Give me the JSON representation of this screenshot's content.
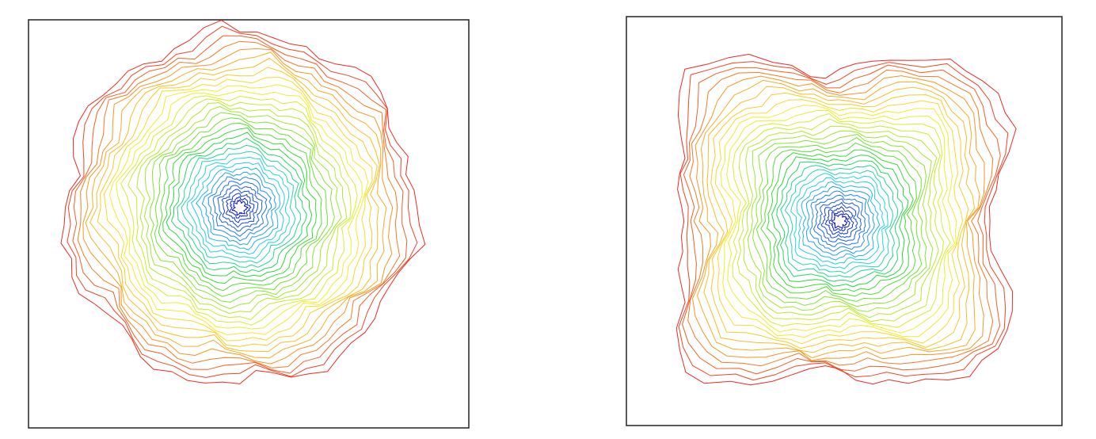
{
  "chart_data": [
    {
      "type": "contour",
      "panel": "left",
      "shape": "round",
      "levels": 34,
      "colormap": [
        "#0a10c8",
        "#1e6cf2",
        "#28d2f0",
        "#2ad63a",
        "#9be830",
        "#f7f02e",
        "#f9a826",
        "#ee2a22"
      ],
      "peak": [
        0.48,
        0.46
      ],
      "grid": false,
      "legend": "none"
    },
    {
      "type": "contour",
      "panel": "right",
      "shape": "square",
      "levels": 34,
      "colormap": [
        "#0a10c8",
        "#1e6cf2",
        "#28d2f0",
        "#2ad63a",
        "#9be830",
        "#f7f02e",
        "#f9a826",
        "#ee2a22"
      ],
      "peak": [
        0.49,
        0.5
      ],
      "grid": false,
      "legend": "none"
    }
  ]
}
